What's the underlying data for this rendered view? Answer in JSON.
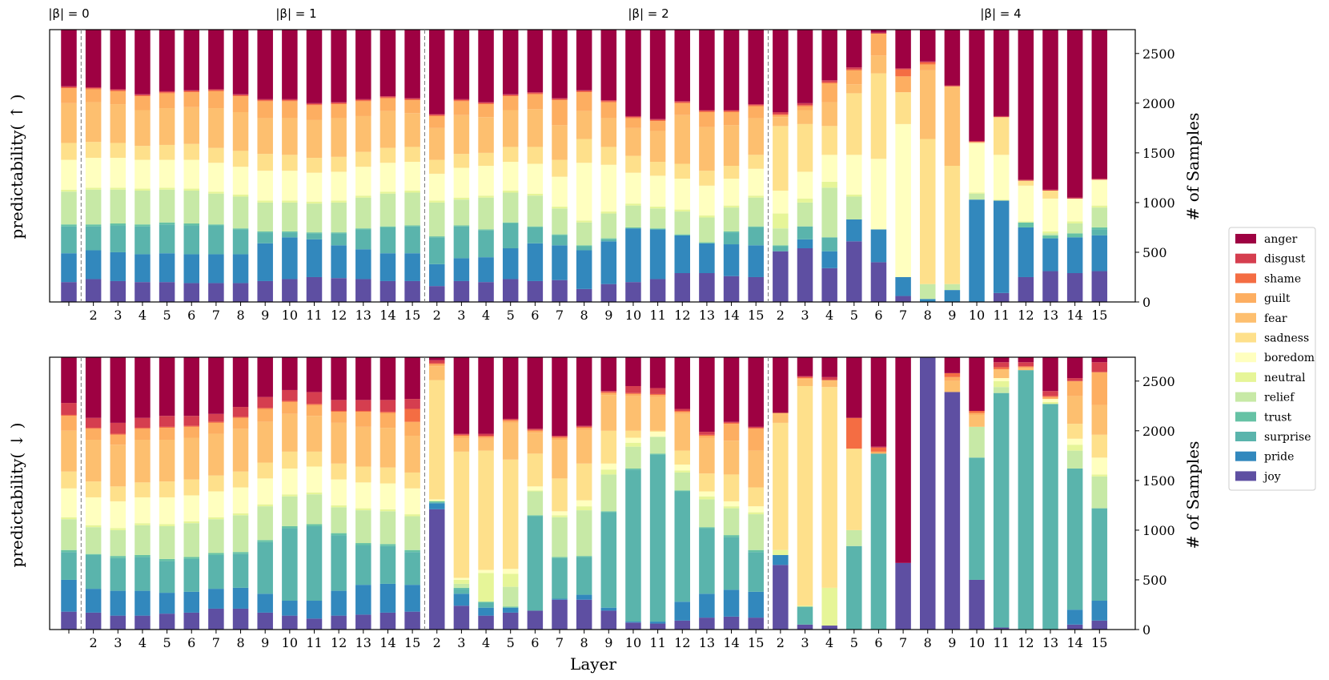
{
  "chart_data": {
    "type": "stacked-bar",
    "categories": [
      "",
      "2",
      "3",
      "4",
      "5",
      "6",
      "7",
      "8",
      "9",
      "10",
      "11",
      "12",
      "13",
      "14",
      "15",
      "2",
      "3",
      "4",
      "5",
      "6",
      "7",
      "8",
      "9",
      "10",
      "11",
      "12",
      "13",
      "14",
      "15",
      "2",
      "3",
      "4",
      "5",
      "6",
      "7",
      "8",
      "9",
      "10",
      "11",
      "12",
      "13",
      "14",
      "15"
    ],
    "groups": [
      {
        "label": "|β| = 0",
        "start": 0,
        "count": 1
      },
      {
        "label": "|β| = 1",
        "start": 1,
        "count": 14
      },
      {
        "label": "|β| = 2",
        "start": 15,
        "count": 14
      },
      {
        "label": "|β| = 4",
        "start": 29,
        "count": 14
      }
    ],
    "xlabel": "Layer",
    "ylabel": "# of Samples",
    "ylim": [
      0,
      2740
    ],
    "yticks": [
      0,
      500,
      1000,
      1500,
      2000,
      2500
    ],
    "legend": {
      "placement": "right",
      "entries": [
        "anger",
        "disgust",
        "shame",
        "guilt",
        "fear",
        "sadness",
        "boredom",
        "neutral",
        "relief",
        "trust",
        "surprise",
        "pride",
        "joy"
      ],
      "colors": [
        "#9e0142",
        "#d53e4f",
        "#f46d43",
        "#fdae61",
        "#fdbf6f",
        "#fee08b",
        "#ffffbf",
        "#e6f598",
        "#c7e9a6",
        "#66c2a5",
        "#5ab4ac",
        "#3288bd",
        "#5e4fa2"
      ]
    },
    "stack_order": [
      "joy",
      "pride",
      "surprise",
      "trust",
      "relief",
      "neutral",
      "boredom",
      "sadness",
      "fear",
      "guilt",
      "shame",
      "disgust"
    ],
    "panels": [
      {
        "title": "predictability( ↑ )",
        "series": {
          "joy": [
            200,
            230,
            210,
            200,
            200,
            190,
            190,
            190,
            210,
            230,
            250,
            240,
            230,
            210,
            210,
            160,
            210,
            200,
            230,
            210,
            220,
            130,
            180,
            200,
            230,
            290,
            290,
            260,
            250,
            510,
            540,
            340,
            610,
            400,
            60,
            0,
            0,
            0,
            90,
            250,
            310,
            290,
            310
          ],
          "pride": [
            290,
            290,
            290,
            280,
            290,
            290,
            290,
            290,
            380,
            420,
            380,
            330,
            300,
            280,
            280,
            220,
            230,
            250,
            310,
            380,
            350,
            390,
            430,
            540,
            500,
            380,
            300,
            320,
            320,
            0,
            90,
            170,
            220,
            330,
            190,
            30,
            120,
            1030,
            930,
            500,
            330,
            360,
            360
          ],
          "surprise": [
            270,
            240,
            270,
            280,
            290,
            290,
            290,
            250,
            110,
            50,
            60,
            120,
            200,
            260,
            270,
            270,
            320,
            270,
            250,
            160,
            100,
            40,
            20,
            0,
            0,
            0,
            0,
            120,
            180,
            50,
            130,
            140,
            0,
            0,
            0,
            0,
            0,
            0,
            0,
            0,
            0,
            0,
            60
          ],
          "trust": [
            20,
            20,
            20,
            20,
            20,
            20,
            10,
            10,
            10,
            10,
            10,
            10,
            10,
            10,
            10,
            10,
            10,
            10,
            10,
            10,
            10,
            10,
            10,
            10,
            10,
            10,
            10,
            10,
            10,
            10,
            0,
            0,
            0,
            0,
            0,
            0,
            0,
            0,
            0,
            50,
            30,
            40,
            20
          ],
          "relief": [
            330,
            350,
            340,
            340,
            330,
            330,
            310,
            320,
            290,
            290,
            290,
            300,
            310,
            330,
            330,
            340,
            260,
            320,
            300,
            310,
            260,
            230,
            250,
            220,
            200,
            230,
            250,
            240,
            290,
            170,
            240,
            500,
            230,
            0,
            0,
            150,
            60,
            60,
            0,
            0,
            20,
            100,
            200
          ],
          "neutral": [
            20,
            20,
            20,
            20,
            20,
            20,
            20,
            20,
            20,
            20,
            20,
            20,
            20,
            20,
            20,
            20,
            20,
            20,
            20,
            20,
            20,
            20,
            20,
            20,
            20,
            20,
            20,
            20,
            20,
            150,
            40,
            60,
            20,
            0,
            0,
            0,
            0,
            10,
            10,
            10,
            20,
            20,
            20
          ],
          "boredom": [
            300,
            300,
            300,
            290,
            280,
            290,
            290,
            280,
            300,
            300,
            290,
            290,
            290,
            290,
            290,
            270,
            300,
            300,
            290,
            300,
            300,
            580,
            470,
            310,
            310,
            310,
            300,
            270,
            270,
            230,
            270,
            270,
            400,
            710,
            1540,
            0,
            0,
            500,
            450,
            360,
            330,
            230,
            260
          ],
          "sadness": [
            170,
            160,
            150,
            140,
            150,
            160,
            150,
            160,
            170,
            160,
            150,
            150,
            150,
            150,
            150,
            140,
            140,
            130,
            150,
            170,
            170,
            240,
            180,
            170,
            140,
            150,
            150,
            130,
            140,
            650,
            480,
            290,
            620,
            860,
            320,
            1460,
            1190,
            0,
            380,
            50,
            80,
            0,
            0
          ],
          "fear": [
            400,
            400,
            390,
            360,
            370,
            370,
            400,
            390,
            360,
            370,
            380,
            390,
            360,
            370,
            340,
            320,
            390,
            360,
            370,
            380,
            350,
            280,
            290,
            280,
            310,
            490,
            440,
            410,
            370,
            90,
            140,
            240,
            90,
            180,
            0,
            690,
            800,
            10,
            0,
            0,
            0,
            0,
            0
          ],
          "guilt": [
            150,
            130,
            130,
            140,
            150,
            150,
            170,
            160,
            170,
            170,
            150,
            140,
            150,
            130,
            130,
            120,
            140,
            130,
            140,
            150,
            250,
            190,
            160,
            100,
            100,
            120,
            150,
            130,
            120,
            20,
            40,
            190,
            140,
            220,
            160,
            60,
            0,
            0,
            0,
            0,
            0,
            0,
            0
          ],
          "shame": [
            10,
            10,
            10,
            10,
            10,
            10,
            10,
            10,
            10,
            10,
            10,
            10,
            10,
            10,
            10,
            10,
            10,
            10,
            10,
            10,
            10,
            10,
            10,
            10,
            10,
            10,
            10,
            10,
            10,
            10,
            10,
            10,
            10,
            0,
            70,
            20,
            0,
            0,
            0,
            0,
            0,
            0,
            0
          ],
          "disgust": [
            10,
            10,
            10,
            10,
            10,
            10,
            10,
            10,
            10,
            10,
            10,
            10,
            10,
            10,
            10,
            10,
            10,
            10,
            10,
            10,
            10,
            10,
            10,
            10,
            10,
            10,
            10,
            10,
            10,
            20,
            20,
            20,
            20,
            10,
            10,
            10,
            10,
            10,
            10,
            10,
            10,
            10,
            10
          ]
        }
      },
      {
        "title": "predictability( ↓ )",
        "series": {
          "joy": [
            180,
            170,
            140,
            140,
            160,
            170,
            210,
            210,
            170,
            140,
            110,
            140,
            150,
            170,
            180,
            1210,
            240,
            140,
            170,
            190,
            300,
            300,
            190,
            70,
            60,
            90,
            120,
            130,
            120,
            650,
            50,
            40,
            0,
            0,
            670,
            2740,
            2390,
            500,
            20,
            0,
            0,
            50,
            90
          ],
          "pride": [
            320,
            240,
            250,
            250,
            210,
            210,
            200,
            210,
            190,
            150,
            180,
            250,
            300,
            290,
            270,
            60,
            120,
            80,
            50,
            0,
            10,
            50,
            30,
            10,
            20,
            190,
            240,
            270,
            260,
            100,
            0,
            0,
            0,
            0,
            0,
            0,
            0,
            0,
            0,
            0,
            0,
            150,
            200
          ],
          "surprise": [
            280,
            340,
            330,
            340,
            320,
            330,
            340,
            340,
            520,
            730,
            750,
            560,
            400,
            380,
            330,
            10,
            50,
            50,
            0,
            950,
            410,
            380,
            960,
            1530,
            1680,
            1110,
            660,
            530,
            400,
            0,
            180,
            0,
            840,
            1770,
            0,
            0,
            0,
            1230,
            2360,
            2610,
            2270,
            1420,
            930
          ],
          "trust": [
            20,
            10,
            20,
            20,
            20,
            20,
            20,
            20,
            20,
            20,
            20,
            20,
            20,
            20,
            20,
            10,
            10,
            10,
            10,
            10,
            10,
            10,
            10,
            10,
            10,
            10,
            10,
            20,
            20,
            0,
            0,
            0,
            0,
            0,
            0,
            0,
            0,
            0,
            0,
            0,
            0,
            0,
            0
          ],
          "relief": [
            310,
            270,
            260,
            300,
            330,
            340,
            340,
            370,
            340,
            300,
            300,
            260,
            330,
            330,
            340,
            0,
            40,
            0,
            200,
            240,
            400,
            460,
            370,
            220,
            170,
            180,
            280,
            270,
            360,
            0,
            0,
            0,
            160,
            0,
            0,
            0,
            0,
            310,
            60,
            0,
            0,
            180,
            320
          ],
          "neutral": [
            20,
            20,
            20,
            20,
            20,
            20,
            20,
            20,
            20,
            20,
            20,
            20,
            20,
            20,
            20,
            10,
            40,
            290,
            130,
            10,
            20,
            40,
            50,
            40,
            0,
            20,
            30,
            20,
            20,
            50,
            10,
            380,
            0,
            0,
            0,
            0,
            0,
            0,
            60,
            0,
            20,
            60,
            20
          ],
          "boredom": [
            290,
            280,
            270,
            260,
            270,
            260,
            260,
            260,
            260,
            260,
            260,
            260,
            260,
            260,
            260,
            10,
            20,
            30,
            50,
            40,
            40,
            60,
            60,
            50,
            50,
            60,
            50,
            50,
            60,
            0,
            0,
            0,
            0,
            0,
            0,
            0,
            0,
            0,
            30,
            0,
            30,
            60,
            170
          ],
          "sadness": [
            170,
            160,
            150,
            150,
            160,
            160,
            160,
            160,
            160,
            170,
            150,
            160,
            160,
            160,
            160,
            1200,
            1270,
            1200,
            1100,
            330,
            330,
            370,
            330,
            70,
            10,
            140,
            180,
            270,
            190,
            1280,
            2210,
            2020,
            820,
            0,
            0,
            0,
            0,
            0,
            0,
            0,
            0,
            150,
            230
          ],
          "fear": [
            410,
            420,
            420,
            430,
            420,
            420,
            420,
            430,
            410,
            380,
            360,
            410,
            400,
            400,
            370,
            140,
            140,
            120,
            370,
            210,
            390,
            340,
            360,
            350,
            340,
            370,
            360,
            340,
            370,
            100,
            70,
            70,
            0,
            0,
            0,
            0,
            110,
            120,
            90,
            30,
            0,
            280,
            300
          ],
          "guilt": [
            150,
            110,
            100,
            110,
            120,
            110,
            110,
            110,
            130,
            120,
            110,
            110,
            150,
            150,
            140,
            20,
            20,
            20,
            20,
            20,
            20,
            20,
            20,
            20,
            20,
            20,
            20,
            170,
            220,
            0,
            10,
            0,
            0,
            20,
            0,
            0,
            40,
            20,
            0,
            0,
            20,
            150,
            330
          ],
          "shame": [
            10,
            10,
            10,
            10,
            10,
            10,
            10,
            10,
            10,
            10,
            10,
            10,
            10,
            10,
            130,
            10,
            10,
            10,
            10,
            10,
            10,
            10,
            10,
            10,
            10,
            10,
            10,
            10,
            10,
            0,
            10,
            0,
            310,
            40,
            0,
            0,
            40,
            20,
            20,
            10,
            10,
            0,
            0
          ],
          "disgust": [
            120,
            100,
            110,
            100,
            110,
            100,
            80,
            100,
            110,
            110,
            120,
            110,
            110,
            120,
            100,
            30,
            10,
            20,
            10,
            10,
            10,
            10,
            10,
            70,
            60,
            20,
            30,
            10,
            10,
            0,
            10,
            30,
            0,
            10,
            0,
            0,
            0,
            0,
            50,
            40,
            50,
            30,
            100
          ]
        }
      }
    ]
  }
}
